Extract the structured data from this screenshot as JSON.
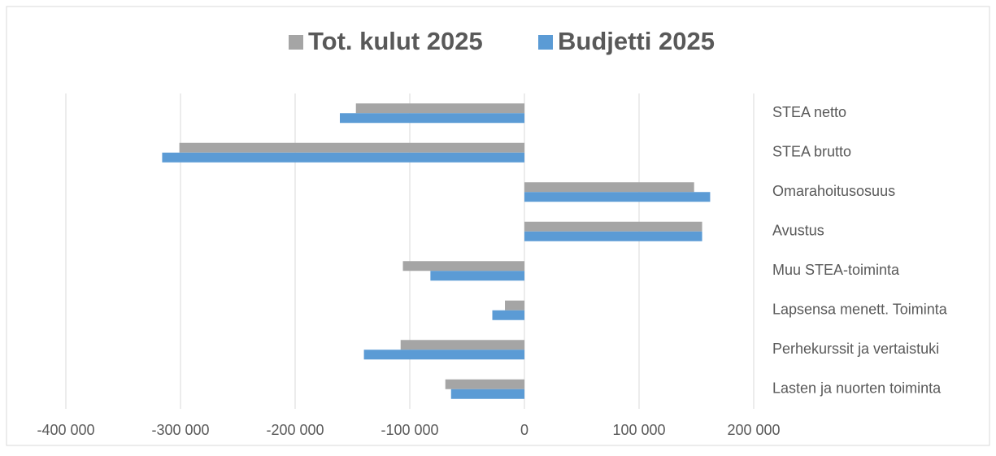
{
  "chart_data": {
    "type": "barh",
    "categories": [
      "STEA netto",
      "STEA brutto",
      "Omarahoitusosuus",
      "Avustus",
      "Muu STEA-toiminta",
      "Lapsensa menett. Toiminta",
      "Perhekurssit ja vertaistuki",
      "Lasten ja nuorten toiminta"
    ],
    "series": [
      {
        "name": "Tot. kulut 2025",
        "color": "#a5a5a5",
        "values": [
          -147000,
          -301000,
          148000,
          155000,
          -106000,
          -17000,
          -108000,
          -69000
        ]
      },
      {
        "name": "Budjetti 2025",
        "color": "#5b9bd5",
        "values": [
          -161000,
          -316000,
          162000,
          155000,
          -82000,
          -28000,
          -140000,
          -64000
        ]
      }
    ],
    "xlim": [
      -400000,
      200000
    ],
    "xticks": [
      {
        "value": -400000,
        "label": "-400 000"
      },
      {
        "value": -300000,
        "label": "-300 000"
      },
      {
        "value": -200000,
        "label": "-200 000"
      },
      {
        "value": -100000,
        "label": "-100 000"
      },
      0,
      {
        "value": 100000,
        "label": "100 000"
      },
      {
        "value": 200000,
        "label": "200 000"
      }
    ],
    "grid": true,
    "legend": "top"
  }
}
